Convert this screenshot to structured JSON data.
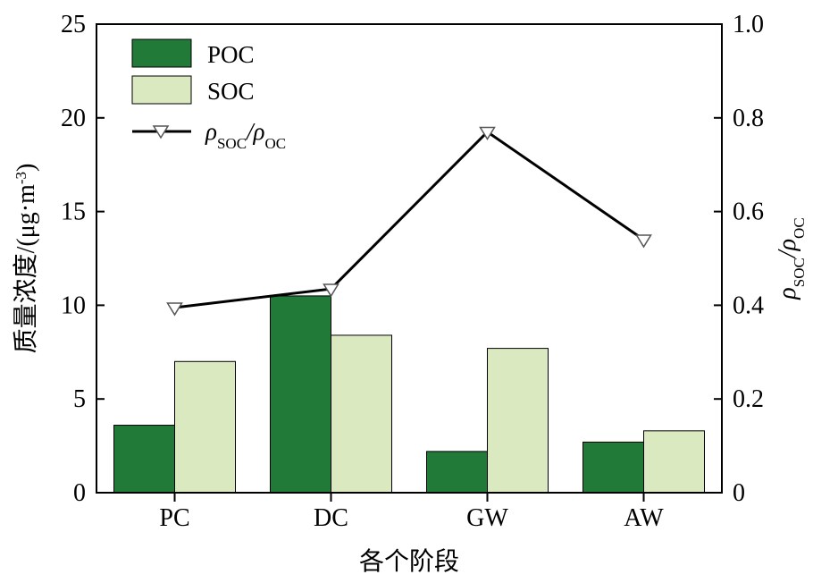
{
  "chart_data": {
    "type": "bar",
    "categories": [
      "PC",
      "DC",
      "GW",
      "AW"
    ],
    "series": [
      {
        "name": "POC",
        "values": [
          3.6,
          10.5,
          2.2,
          2.7
        ],
        "color": "#217a37"
      },
      {
        "name": "SOC",
        "values": [
          7.0,
          8.4,
          7.7,
          3.3
        ],
        "color": "#dbe9c0"
      }
    ],
    "line_series": {
      "name_main": "ρ",
      "name_sub1": "SOC",
      "name_slash": "/ρ",
      "name_sub2": "OC",
      "values": [
        0.395,
        0.435,
        0.77,
        0.54
      ],
      "color": "#000000",
      "axis": "right"
    },
    "xlabel": "各个阶段",
    "ylabel_left": "质量浓度/(μg·m",
    "ylabel_left_sup": "-3",
    "ylabel_left_end": ")",
    "ylabel_right": {
      "main": "ρ",
      "sub1": "SOC",
      "slash": "/ρ",
      "sub2": "OC"
    },
    "ylim_left": [
      0,
      25
    ],
    "yticks_left": [
      "0",
      "5",
      "10",
      "15",
      "20",
      "25"
    ],
    "ylim_right": [
      0,
      1.0
    ],
    "yticks_right": [
      "0",
      "0.2",
      "0.4",
      "0.6",
      "0.8",
      "1.0"
    ],
    "grid": false,
    "legend_position": "top-left"
  }
}
